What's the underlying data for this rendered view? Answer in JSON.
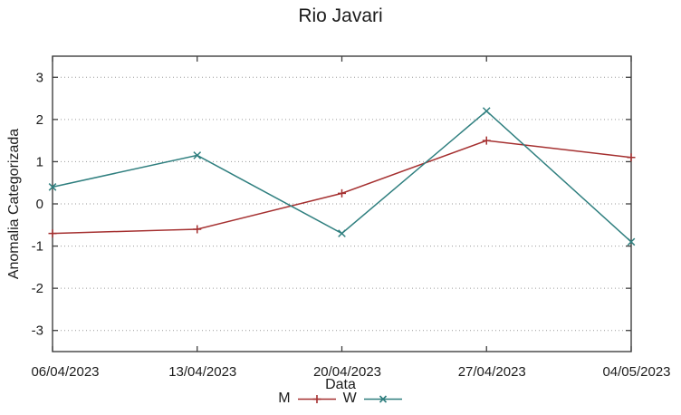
{
  "chart_data": {
    "type": "line",
    "title": "Rio Javari",
    "xlabel": "Data",
    "ylabel": "Anomalia Categorizada",
    "categories": [
      "06/04/2023",
      "13/04/2023",
      "20/04/2023",
      "27/04/2023",
      "04/05/2023"
    ],
    "series": [
      {
        "name": "M",
        "marker": "plus",
        "color": "#a53030",
        "values": [
          -0.7,
          -0.6,
          0.25,
          1.5,
          1.1
        ]
      },
      {
        "name": "W",
        "marker": "cross",
        "color": "#2f7f7f",
        "values": [
          0.4,
          1.15,
          -0.7,
          2.2,
          -0.9
        ]
      }
    ],
    "ylim": [
      -3.5,
      3.5
    ],
    "yticks": [
      -3,
      -2,
      -1,
      0,
      1,
      2,
      3
    ],
    "grid": "dotted-horizontal",
    "legend_position": "bottom-center",
    "colors": {
      "text": "#1c1c1c",
      "grid": "#9a9a9a",
      "border": "#404040"
    }
  }
}
